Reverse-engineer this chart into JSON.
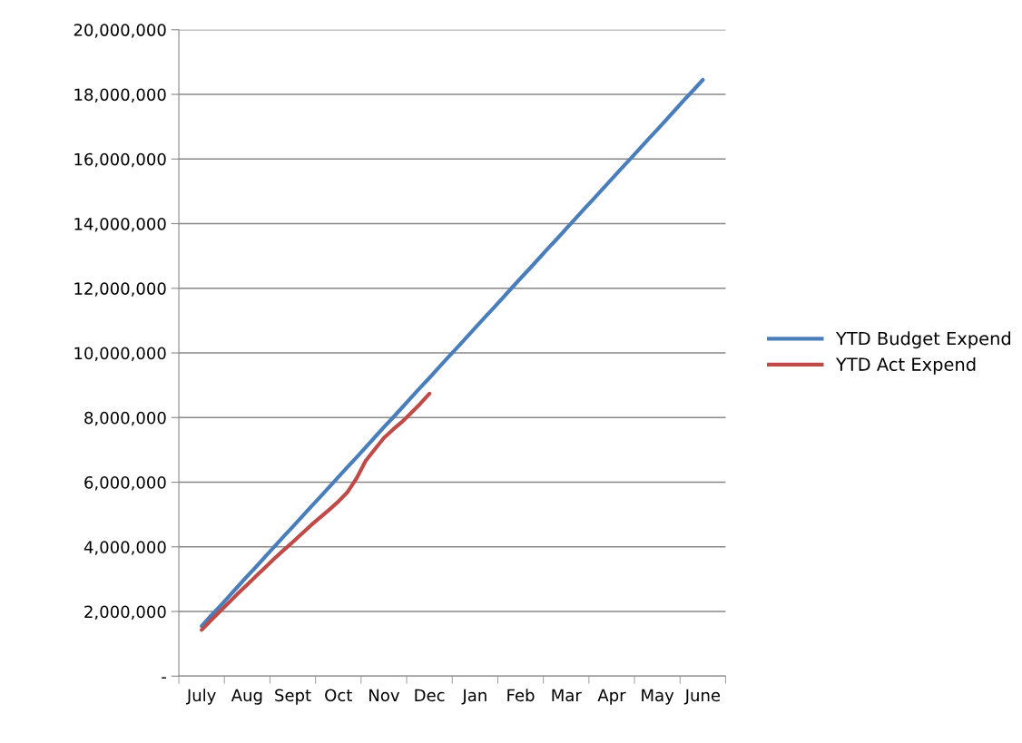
{
  "chart_data": {
    "type": "line",
    "categories": [
      null,
      null,
      "July",
      null,
      null,
      null,
      null,
      "Aug",
      null,
      null,
      null,
      null,
      "Sept",
      null,
      null,
      null,
      null,
      "Oct",
      null,
      null,
      null,
      null,
      "Nov",
      null,
      null,
      null,
      null,
      "Dec",
      null,
      null,
      null,
      null,
      "Jan",
      null,
      null,
      null,
      null,
      "Feb",
      null,
      null,
      null,
      null,
      "Mar",
      null,
      null,
      null,
      null,
      "Apr",
      null,
      null,
      null,
      null,
      "May",
      null,
      null,
      null,
      null,
      "June",
      null,
      null
    ],
    "ylim": [
      0,
      20000000
    ],
    "yticks": [
      {
        "value": 0,
        "label": "-"
      },
      {
        "value": 2000000,
        "label": "2,000,000"
      },
      {
        "value": 4000000,
        "label": "4,000,000"
      },
      {
        "value": 6000000,
        "label": "6,000,000"
      },
      {
        "value": 8000000,
        "label": "8,000,000"
      },
      {
        "value": 10000000,
        "label": "10,000,000"
      },
      {
        "value": 12000000,
        "label": "12,000,000"
      },
      {
        "value": 14000000,
        "label": "14,000,000"
      },
      {
        "value": 16000000,
        "label": "16,000,000"
      },
      {
        "value": 18000000,
        "label": "18,000,000"
      },
      {
        "value": 20000000,
        "label": "20,000,000"
      }
    ],
    "grid": "y",
    "legend": "right",
    "marker": "none",
    "line_style": "solid",
    "series": [
      {
        "name": "YTD Budget Expend",
        "color": "#4a7ebb",
        "values": [
          null,
          null,
          1550000,
          1860000,
          2160000,
          2470000,
          2780000,
          3090000,
          3390000,
          3700000,
          4010000,
          4320000,
          4620000,
          4930000,
          5240000,
          5540000,
          5850000,
          6160000,
          6470000,
          6770000,
          7080000,
          7390000,
          7700000,
          8000000,
          8310000,
          8620000,
          8930000,
          9230000,
          9540000,
          9850000,
          10150000,
          10460000,
          10770000,
          11080000,
          11380000,
          11690000,
          12000000,
          12310000,
          12610000,
          12920000,
          13230000,
          13530000,
          13840000,
          14150000,
          14460000,
          14760000,
          15070000,
          15380000,
          15690000,
          15990000,
          16300000,
          16610000,
          16910000,
          17220000,
          17530000,
          17840000,
          18140000,
          18450000,
          null,
          null
        ]
      },
      {
        "name": "YTD Act Expend",
        "color": "#be4b48",
        "values": [
          null,
          null,
          1430000,
          1720000,
          2000000,
          2280000,
          2560000,
          2830000,
          3100000,
          3370000,
          3640000,
          3900000,
          4150000,
          4410000,
          4670000,
          4910000,
          5150000,
          5400000,
          5690000,
          6120000,
          6660000,
          7020000,
          7370000,
          7630000,
          7870000,
          8150000,
          8430000,
          8740000,
          null,
          null,
          null,
          null,
          null,
          null,
          null,
          null,
          null,
          null,
          null,
          null,
          null,
          null,
          null,
          null,
          null,
          null,
          null,
          null,
          null,
          null,
          null,
          null,
          null,
          null,
          null,
          null,
          null,
          null,
          null,
          null
        ]
      }
    ]
  }
}
